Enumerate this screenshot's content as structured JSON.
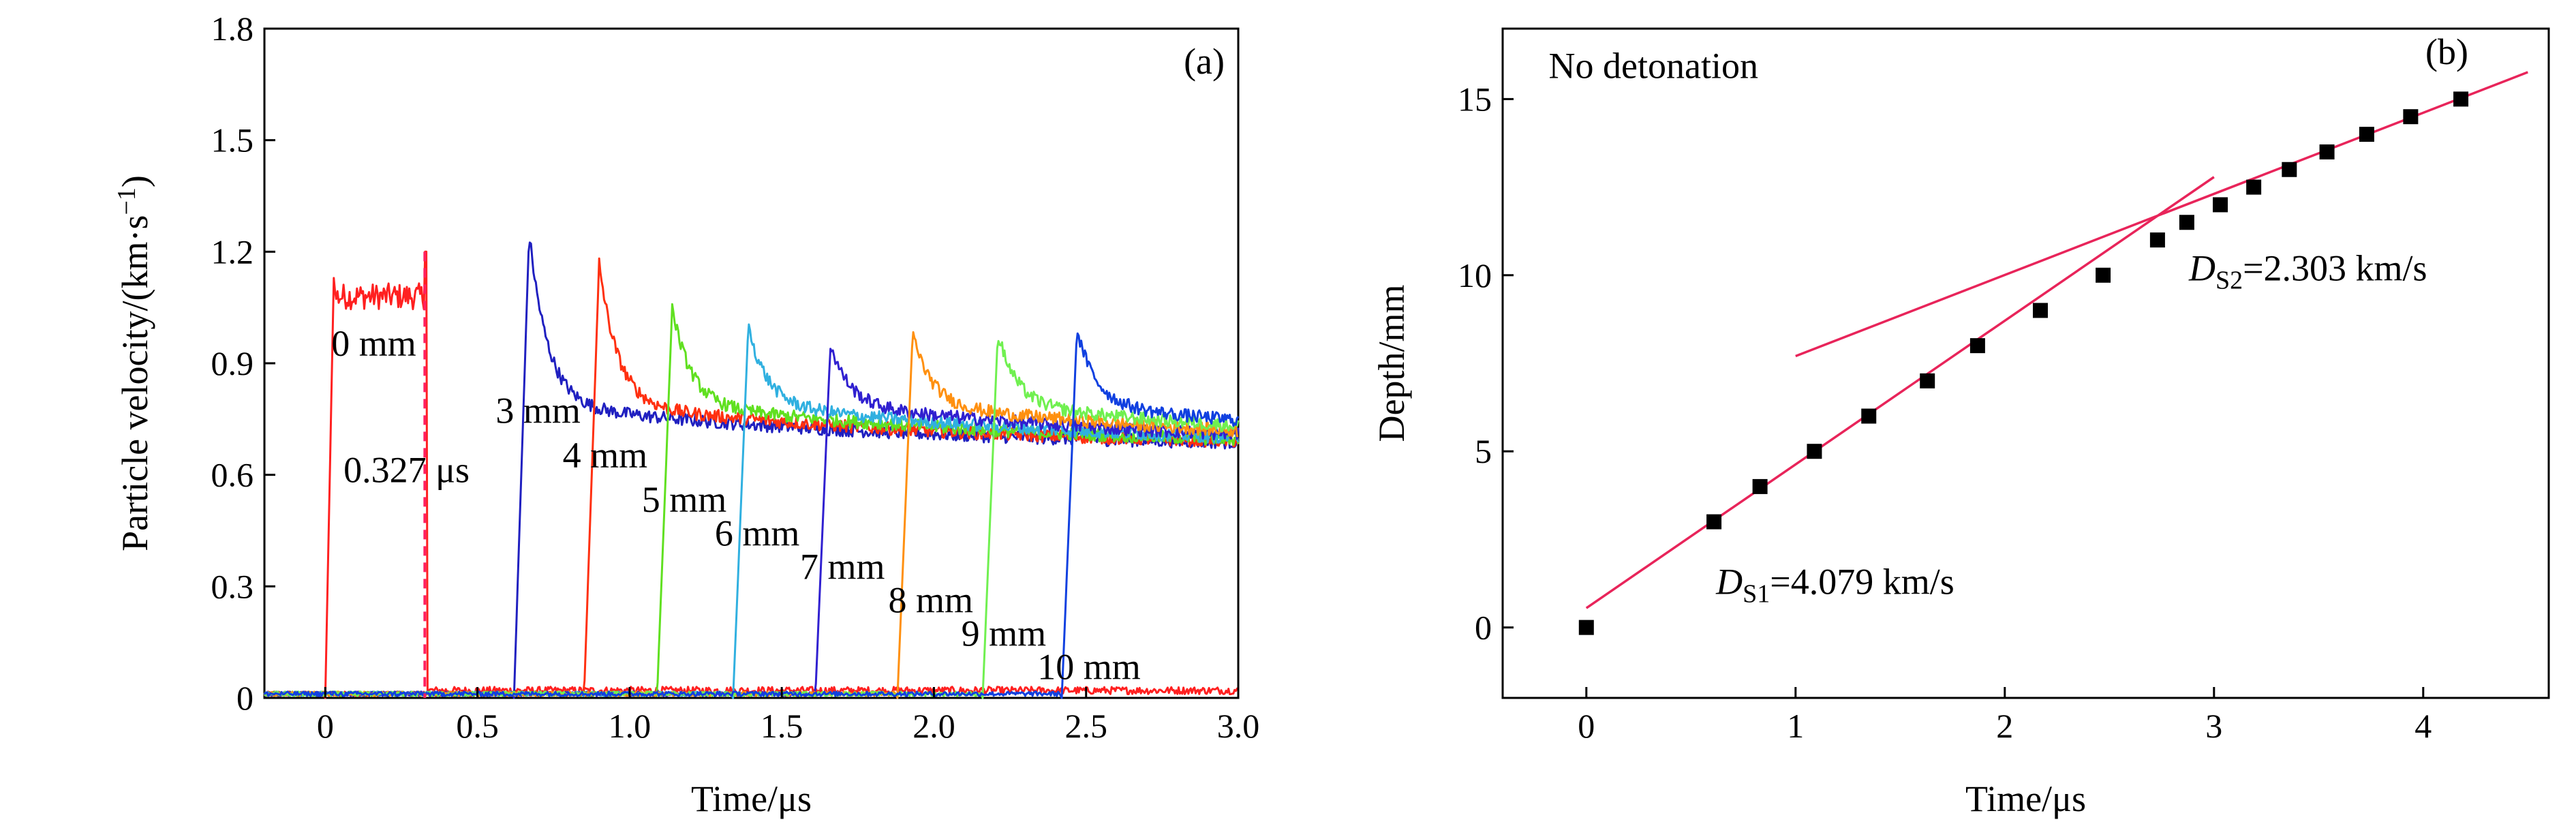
{
  "chart_data": [
    {
      "panel": "(a)",
      "type": "line",
      "xlabel": "Time/μs",
      "ylabel": "Particle velocity/(km·s",
      "ylabel_sup": "−1",
      "ylabel_close": ")",
      "xlim": [
        -0.2,
        3.0
      ],
      "ylim": [
        0,
        1.8
      ],
      "xticks": [
        "0",
        "0.5",
        "1.0",
        "1.5",
        "2.0",
        "2.5",
        "3.0"
      ],
      "xtick_values": [
        0,
        0.5,
        1.0,
        1.5,
        2.0,
        2.5,
        3.0
      ],
      "yticks": [
        "0",
        "0.3",
        "0.6",
        "0.9",
        "1.2",
        "1.5",
        "1.8"
      ],
      "ytick_values": [
        0,
        0.3,
        0.6,
        0.9,
        1.2,
        1.5,
        1.8
      ],
      "annotation_time": "0.327 μs",
      "annotation_time_value": 0.327,
      "series": [
        {
          "name": "0 mm",
          "arrival": 0.0,
          "peak": 1.21,
          "color": "#ff2020"
        },
        {
          "name": "3 mm",
          "arrival": 0.62,
          "peak": 1.25,
          "color": "#2020c0"
        },
        {
          "name": "4 mm",
          "arrival": 0.85,
          "peak": 1.17,
          "color": "#ff3010"
        },
        {
          "name": "5 mm",
          "arrival": 1.09,
          "peak": 1.05,
          "color": "#60e020"
        },
        {
          "name": "6 mm",
          "arrival": 1.34,
          "peak": 1.0,
          "color": "#30b0e0"
        },
        {
          "name": "7 mm",
          "arrival": 1.61,
          "peak": 0.95,
          "color": "#3020d0"
        },
        {
          "name": "8 mm",
          "arrival": 1.88,
          "peak": 0.98,
          "color": "#ff9010"
        },
        {
          "name": "9 mm",
          "arrival": 2.16,
          "peak": 0.98,
          "color": "#70f050"
        },
        {
          "name": "10 mm",
          "arrival": 2.42,
          "peak": 0.99,
          "color": "#1040e0"
        }
      ],
      "panel_label": "(a)"
    },
    {
      "panel": "(b)",
      "type": "scatter",
      "xlabel": "Time/μs",
      "ylabel": "Depth/mm",
      "xlim": [
        -0.4,
        4.6
      ],
      "ylim": [
        -2,
        17
      ],
      "xticks": [
        "0",
        "1",
        "2",
        "3",
        "4"
      ],
      "xtick_values": [
        0,
        1,
        2,
        3,
        4
      ],
      "yticks": [
        "0",
        "5",
        "10",
        "15"
      ],
      "ytick_values": [
        0,
        5,
        10,
        15
      ],
      "points": {
        "x": [
          0,
          0.61,
          0.83,
          1.09,
          1.35,
          1.63,
          1.87,
          2.17,
          2.47,
          2.73,
          2.87,
          3.03,
          3.19,
          3.36,
          3.54,
          3.73,
          3.94,
          4.18
        ],
        "y": [
          0,
          3,
          4,
          5,
          6,
          7,
          8,
          9,
          10,
          11,
          11.5,
          12,
          12.5,
          13,
          13.5,
          14,
          14.5,
          15
        ]
      },
      "fits": [
        {
          "label": "D",
          "subscript": "S1",
          "value_text": "=4.079 km/s",
          "slope": 4.079,
          "intercept": 0.55,
          "x_range": [
            0,
            3.0
          ]
        },
        {
          "label": "D",
          "subscript": "S2",
          "value_text": "=2.303 km/s",
          "slope": 2.303,
          "intercept": 5.4,
          "x_range": [
            1.0,
            4.5
          ]
        }
      ],
      "note": "No detonation",
      "panel_label": "(b)",
      "fit_color": "#e8245a"
    }
  ]
}
